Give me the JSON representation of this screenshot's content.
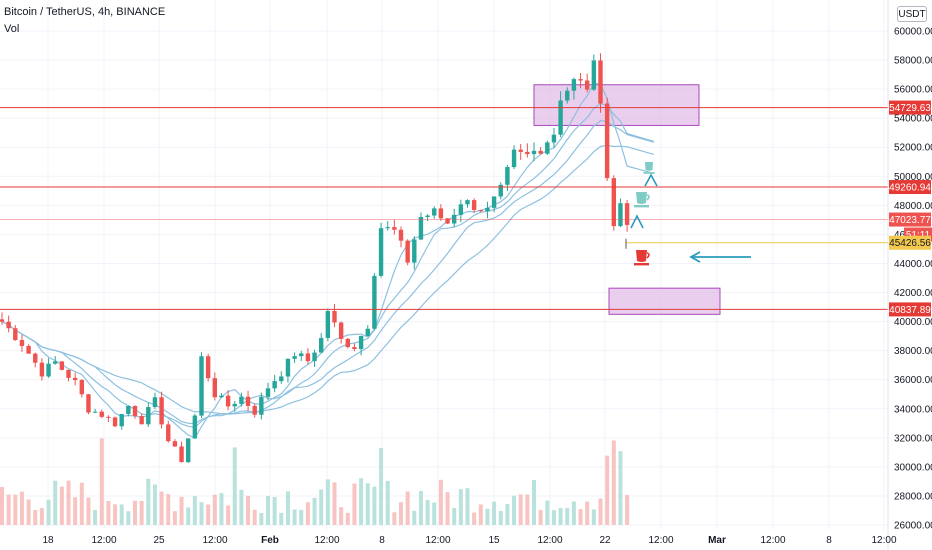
{
  "header": {
    "title": "Bitcoin / TetherUS, 4h, BINANCE",
    "vol_label": "Vol",
    "currency_button": "USDT"
  },
  "colors": {
    "up": "#26a69a",
    "down": "#ef5350",
    "level_line": "#e53935",
    "current_line": "#f2c94c",
    "zone_fill": "#e1bee7",
    "zone_stroke": "#ab47bc",
    "ma": "#8ec1e0",
    "arrow": "#2a9bbd",
    "volume_up": "#b9e2dc",
    "volume_down": "#f8c4c2",
    "cup_green": "#26a69a",
    "cup_red": "#e53935"
  },
  "chart_data": {
    "type": "candlestick",
    "symbol": "Bitcoin / TetherUS",
    "timeframe": "4h",
    "exchange": "BINANCE",
    "y_axis": {
      "ticks": [
        26000,
        28000,
        30000,
        32000,
        34000,
        36000,
        38000,
        40000,
        42000,
        44000,
        46000,
        48000,
        50000,
        52000,
        54000,
        56000,
        58000,
        60000
      ],
      "tick_labels": [
        "26000.00",
        "28000.00",
        "30000.00",
        "32000.00",
        "34000.00",
        "36000.00",
        "38000.00",
        "40000.00",
        "42000.00",
        "44000.00",
        "46000.00",
        "48000.00",
        "50000.00",
        "52000.00",
        "54000.00",
        "56000.00",
        "58000.00",
        "60000.00"
      ],
      "range": [
        26000,
        61500
      ]
    },
    "x_axis": {
      "labels": [
        "18",
        "12:00",
        "25",
        "12:00",
        "Feb",
        "12:00",
        "8",
        "12:00",
        "15",
        "12:00",
        "22",
        "12:00",
        "Mar",
        "12:00",
        "8",
        "12:00"
      ],
      "bold": [
        "Feb",
        "Mar"
      ]
    },
    "price_labels": [
      {
        "text": "54729.63",
        "value": 54729.63,
        "color": "#e53935"
      },
      {
        "text": "49260.94",
        "value": 49260.94,
        "color": "#e53935"
      },
      {
        "text": "47023.77",
        "value": 47023.77,
        "color": "#ef5350"
      },
      {
        "text": "51:11",
        "value": 46000,
        "color": "#ef5350"
      },
      {
        "text": "45426.56",
        "value": 45426.56,
        "color": "#f2c94c"
      },
      {
        "text": "40837.89",
        "value": 40837.89,
        "color": "#e53935"
      }
    ],
    "horizontal_levels": [
      54729.63,
      49260.94,
      40837.89
    ],
    "current_price": 47023.77,
    "highlight_level": 45426.56,
    "zones": [
      {
        "low": 53500,
        "high": 56300
      },
      {
        "low": 40500,
        "high": 42300
      }
    ],
    "price_path": [
      [
        0,
        40000
      ],
      [
        3,
        38500
      ],
      [
        6,
        36500
      ],
      [
        8,
        37200
      ],
      [
        11,
        35800
      ],
      [
        13,
        34000
      ],
      [
        15,
        33600
      ],
      [
        17,
        33000
      ],
      [
        19,
        34200
      ],
      [
        21,
        33200
      ],
      [
        23,
        34500
      ],
      [
        25,
        31800
      ],
      [
        27,
        30500
      ],
      [
        29,
        33500
      ],
      [
        30,
        37500
      ],
      [
        32,
        35000
      ],
      [
        34,
        34200
      ],
      [
        36,
        34800
      ],
      [
        38,
        33800
      ],
      [
        40,
        35500
      ],
      [
        42,
        36500
      ],
      [
        44,
        37800
      ],
      [
        46,
        37300
      ],
      [
        48,
        38800
      ],
      [
        49,
        40800
      ],
      [
        51,
        38700
      ],
      [
        53,
        38300
      ],
      [
        55,
        39800
      ],
      [
        56,
        43500
      ],
      [
        57,
        46500
      ],
      [
        59,
        46200
      ],
      [
        61,
        44200
      ],
      [
        63,
        47200
      ],
      [
        65,
        47500
      ],
      [
        67,
        46800
      ],
      [
        69,
        48300
      ],
      [
        71,
        48000
      ],
      [
        73,
        47600
      ],
      [
        75,
        49000
      ],
      [
        77,
        51500
      ],
      [
        79,
        51400
      ],
      [
        81,
        52000
      ],
      [
        83,
        53000
      ],
      [
        84,
        55500
      ],
      [
        86,
        56500
      ],
      [
        88,
        56200
      ],
      [
        89,
        57500
      ],
      [
        90,
        55500
      ],
      [
        91,
        50000
      ],
      [
        92,
        46500
      ],
      [
        93,
        48200
      ],
      [
        94,
        47000
      ]
    ]
  }
}
